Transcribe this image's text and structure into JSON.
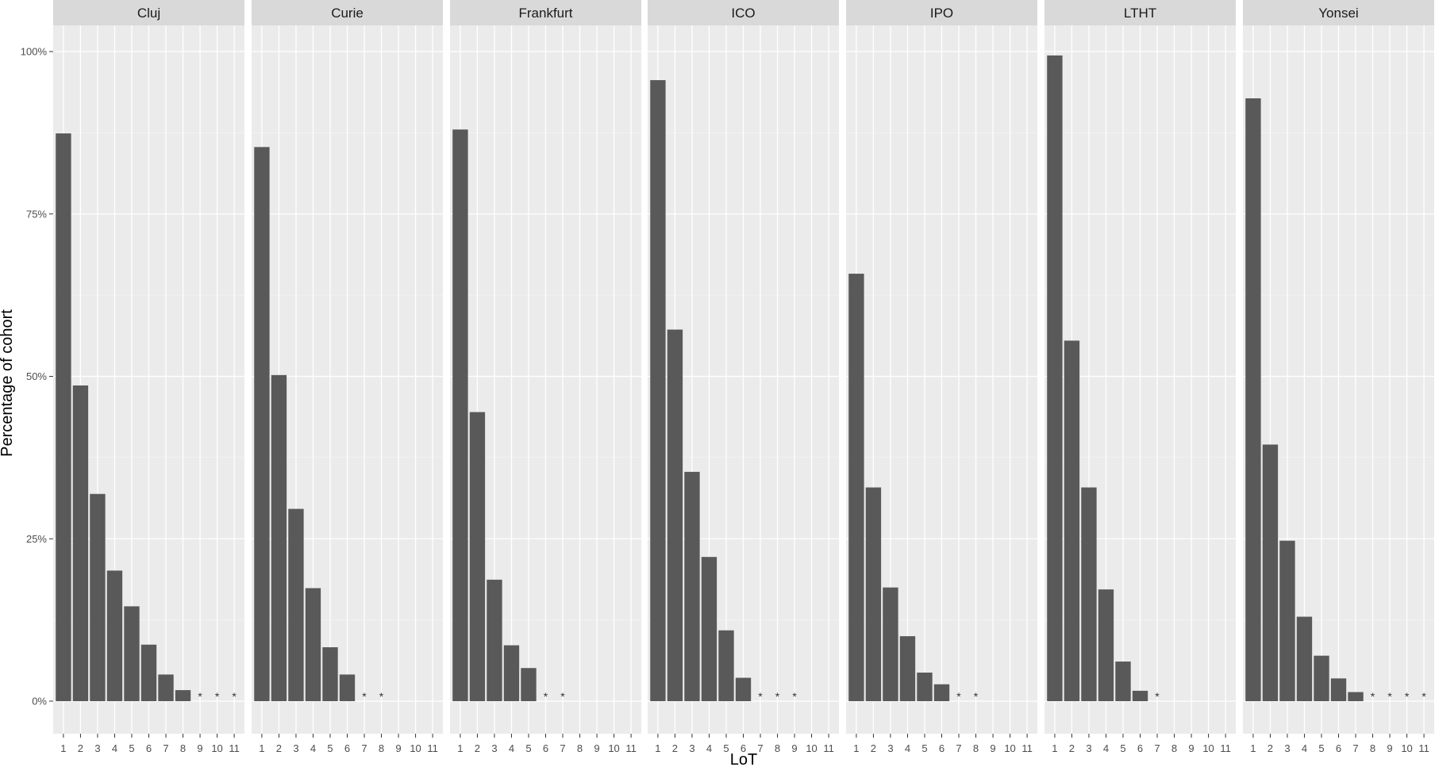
{
  "chart_data": {
    "type": "bar",
    "xlabel": "LoT",
    "ylabel": "Percentage of cohort",
    "ylim": [
      0,
      1.05
    ],
    "x": [
      1,
      2,
      3,
      4,
      5,
      6,
      7,
      8,
      9,
      10,
      11
    ],
    "y_ticks": [
      {
        "value": 0,
        "label": "0%"
      },
      {
        "value": 0.25,
        "label": "25%"
      },
      {
        "value": 0.5,
        "label": "50%"
      },
      {
        "value": 0.75,
        "label": "75%"
      },
      {
        "value": 1.0,
        "label": "100%"
      }
    ],
    "grid": true,
    "suppressed_marker": "*",
    "facets": [
      {
        "name": "Cluj",
        "values": [
          0.874,
          0.486,
          0.319,
          0.201,
          0.146,
          0.087,
          0.041,
          0.017
        ],
        "suppressed": [
          9,
          10,
          11
        ]
      },
      {
        "name": "Curie",
        "values": [
          0.853,
          0.502,
          0.296,
          0.174,
          0.083,
          0.041
        ],
        "suppressed": [
          7,
          8
        ]
      },
      {
        "name": "Frankfurt",
        "values": [
          0.88,
          0.445,
          0.187,
          0.086,
          0.051
        ],
        "suppressed": [
          6,
          7
        ]
      },
      {
        "name": "ICO",
        "values": [
          0.956,
          0.572,
          0.353,
          0.222,
          0.109,
          0.036
        ],
        "suppressed": [
          7,
          8,
          9
        ]
      },
      {
        "name": "IPO",
        "values": [
          0.658,
          0.329,
          0.175,
          0.1,
          0.044,
          0.026
        ],
        "suppressed": [
          7,
          8
        ]
      },
      {
        "name": "LTHT",
        "values": [
          0.994,
          0.555,
          0.329,
          0.172,
          0.061,
          0.016
        ],
        "suppressed": [
          7
        ]
      },
      {
        "name": "Yonsei",
        "values": [
          0.928,
          0.395,
          0.247,
          0.13,
          0.07,
          0.035,
          0.014
        ],
        "suppressed": [
          8,
          9,
          10,
          11
        ]
      }
    ],
    "colors": {
      "bar": "#595959",
      "panel": "#ebebeb",
      "strip": "#d9d9d9",
      "grid": "#ffffff"
    }
  }
}
